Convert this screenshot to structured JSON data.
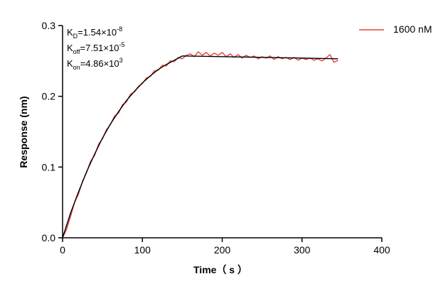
{
  "chart_data": {
    "type": "line",
    "xlabel": "Time（ s ）",
    "ylabel": "Response (nm)",
    "xlim": [
      0,
      400
    ],
    "xticks": [
      0,
      100,
      200,
      300,
      400
    ],
    "ylim": [
      0,
      0.3
    ],
    "yticks": [
      {
        "value": 0,
        "label": "0.0"
      },
      0.1,
      0.2,
      0.3
    ],
    "annotations": [
      {
        "symbol": "K",
        "subscript": "D",
        "text": "=1.54×10",
        "exponent": "-8"
      },
      {
        "symbol": "K",
        "subscript": "off",
        "text": "=7.51×10",
        "exponent": "-5"
      },
      {
        "symbol": "K",
        "subscript": "on",
        "text": "=4.86×10",
        "exponent": "3"
      }
    ],
    "legend": "upper right",
    "series": [
      {
        "name": "1600 nM",
        "color": "#e8413f",
        "x": [
          0,
          5,
          10,
          15,
          20,
          25,
          30,
          35,
          40,
          45,
          50,
          55,
          60,
          65,
          70,
          75,
          80,
          85,
          90,
          95,
          100,
          105,
          110,
          115,
          120,
          125,
          130,
          135,
          140,
          145,
          150,
          155,
          160,
          165,
          170,
          175,
          180,
          185,
          190,
          195,
          200,
          205,
          210,
          215,
          220,
          225,
          230,
          235,
          240,
          245,
          250,
          255,
          260,
          265,
          270,
          275,
          280,
          285,
          290,
          295,
          300,
          305,
          310,
          315,
          320,
          325,
          330,
          335,
          340,
          345
        ],
        "values": [
          0.0,
          0.012,
          0.03,
          0.05,
          0.062,
          0.08,
          0.092,
          0.108,
          0.116,
          0.132,
          0.14,
          0.153,
          0.16,
          0.172,
          0.176,
          0.188,
          0.192,
          0.203,
          0.206,
          0.214,
          0.218,
          0.226,
          0.228,
          0.236,
          0.237,
          0.244,
          0.243,
          0.25,
          0.249,
          0.255,
          0.253,
          0.258,
          0.26,
          0.256,
          0.263,
          0.258,
          0.262,
          0.257,
          0.261,
          0.258,
          0.262,
          0.256,
          0.26,
          0.255,
          0.259,
          0.254,
          0.258,
          0.255,
          0.257,
          0.253,
          0.256,
          0.254,
          0.257,
          0.252,
          0.256,
          0.253,
          0.255,
          0.252,
          0.255,
          0.251,
          0.254,
          0.252,
          0.254,
          0.251,
          0.253,
          0.25,
          0.254,
          0.259,
          0.248,
          0.251
        ]
      },
      {
        "color": "#000000",
        "x": [
          0,
          10,
          20,
          30,
          40,
          50,
          60,
          70,
          80,
          90,
          100,
          110,
          120,
          130,
          140,
          150,
          200,
          250,
          300,
          345
        ],
        "values": [
          0,
          0.035,
          0.065,
          0.093,
          0.118,
          0.141,
          0.161,
          0.178,
          0.194,
          0.207,
          0.219,
          0.229,
          0.238,
          0.245,
          0.251,
          0.257,
          0.256,
          0.255,
          0.254,
          0.253
        ]
      }
    ]
  }
}
